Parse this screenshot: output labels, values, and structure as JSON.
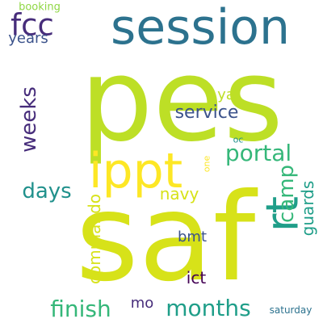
{
  "palette": {
    "background": "#ffffff",
    "lime": "#bddf26",
    "yellow_green": "#d7e219",
    "yellow": "#fde725",
    "light_green": "#6ece58",
    "green": "#35b779",
    "teal": "#1f9e89",
    "teal_blue": "#21918c",
    "blue": "#2c728e",
    "slate": "#3b528b",
    "indigo": "#472d7b",
    "dark_purple": "#440154",
    "pale_green": "#8fd744"
  },
  "words": [
    {
      "text": "pes",
      "color": "lime",
      "orientation": "horizontal"
    },
    {
      "text": "saf",
      "color": "yellow_green",
      "orientation": "horizontal"
    },
    {
      "text": "session",
      "color": "blue",
      "orientation": "horizontal"
    },
    {
      "text": "ippt",
      "color": "yellow",
      "orientation": "horizontal"
    },
    {
      "text": "rt",
      "color": "teal",
      "orientation": "vertical"
    },
    {
      "text": "fcc",
      "color": "indigo",
      "orientation": "horizontal"
    },
    {
      "text": "portal",
      "color": "green",
      "orientation": "horizontal"
    },
    {
      "text": "weeks",
      "color": "indigo",
      "orientation": "vertical"
    },
    {
      "text": "camp",
      "color": "green",
      "orientation": "vertical"
    },
    {
      "text": "days",
      "color": "teal_blue",
      "orientation": "horizontal"
    },
    {
      "text": "months",
      "color": "teal",
      "orientation": "horizontal"
    },
    {
      "text": "finish",
      "color": "green",
      "orientation": "horizontal"
    },
    {
      "text": "service",
      "color": "slate",
      "orientation": "horizontal"
    },
    {
      "text": "navy",
      "color": "yellow_green",
      "orientation": "horizontal"
    },
    {
      "text": "guards",
      "color": "teal",
      "orientation": "vertical"
    },
    {
      "text": "commando",
      "color": "yellow_green",
      "orientation": "vertical"
    },
    {
      "text": "years",
      "color": "slate",
      "orientation": "horizontal"
    },
    {
      "text": "ya",
      "color": "lime",
      "orientation": "horizontal"
    },
    {
      "text": "bmt",
      "color": "slate",
      "orientation": "horizontal"
    },
    {
      "text": "ict",
      "color": "dark_purple",
      "orientation": "horizontal"
    },
    {
      "text": "mo",
      "color": "indigo",
      "orientation": "horizontal"
    },
    {
      "text": "booking",
      "color": "pale_green",
      "orientation": "horizontal"
    },
    {
      "text": "saturday",
      "color": "blue",
      "orientation": "horizontal"
    },
    {
      "text": "oc",
      "color": "teal_blue",
      "orientation": "horizontal"
    },
    {
      "text": "one",
      "color": "yellow",
      "orientation": "vertical"
    }
  ]
}
